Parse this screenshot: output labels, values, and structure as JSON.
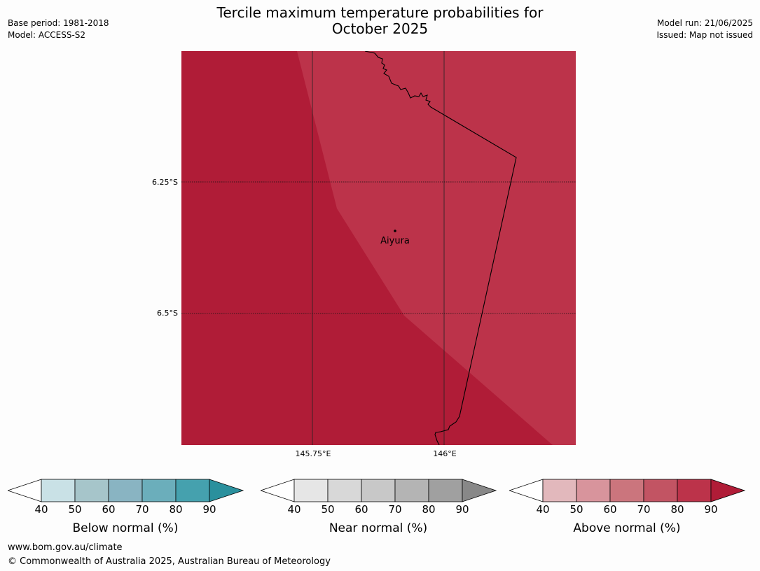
{
  "header": {
    "title_line1": "Tercile maximum temperature probabilities for",
    "title_line2": "October 2025",
    "base_period": "Base period: 1981-2018",
    "model": "Model: ACCESS-S2",
    "model_run": "Model run: 21/06/2025",
    "issued": "Issued: Map not issued"
  },
  "map": {
    "lat_labels": [
      "6.25°S",
      "6.5°S"
    ],
    "lon_labels": [
      "145.75°E",
      "146°E"
    ],
    "place_label": "Aiyura",
    "colors": {
      "dark_red": "#b01c37",
      "medium_red": "#bc334a"
    }
  },
  "legends": [
    {
      "name": "below",
      "label": "Below normal (%)",
      "ticks": [
        "40",
        "50",
        "60",
        "70",
        "80",
        "90"
      ],
      "colors": [
        "#ffffff",
        "#c9e1e6",
        "#a6c5ca",
        "#89b4c2",
        "#6baebb",
        "#45a1ae",
        "#2a909d"
      ]
    },
    {
      "name": "near",
      "label": "Near normal (%)",
      "ticks": [
        "40",
        "50",
        "60",
        "70",
        "80",
        "90"
      ],
      "colors": [
        "#ffffff",
        "#e6e6e6",
        "#d8d8d8",
        "#c8c8c8",
        "#b4b4b4",
        "#a0a0a0",
        "#888888"
      ]
    },
    {
      "name": "above",
      "label": "Above normal (%)",
      "ticks": [
        "40",
        "50",
        "60",
        "70",
        "80",
        "90"
      ],
      "colors": [
        "#ffffff",
        "#e2b8bc",
        "#d8949c",
        "#cb757d",
        "#c25463",
        "#bc334a",
        "#b01c37"
      ]
    }
  ],
  "footer": {
    "url": "www.bom.gov.au/climate",
    "copyright": "© Commonwealth of Australia 2025, Australian Bureau of Meteorology"
  }
}
